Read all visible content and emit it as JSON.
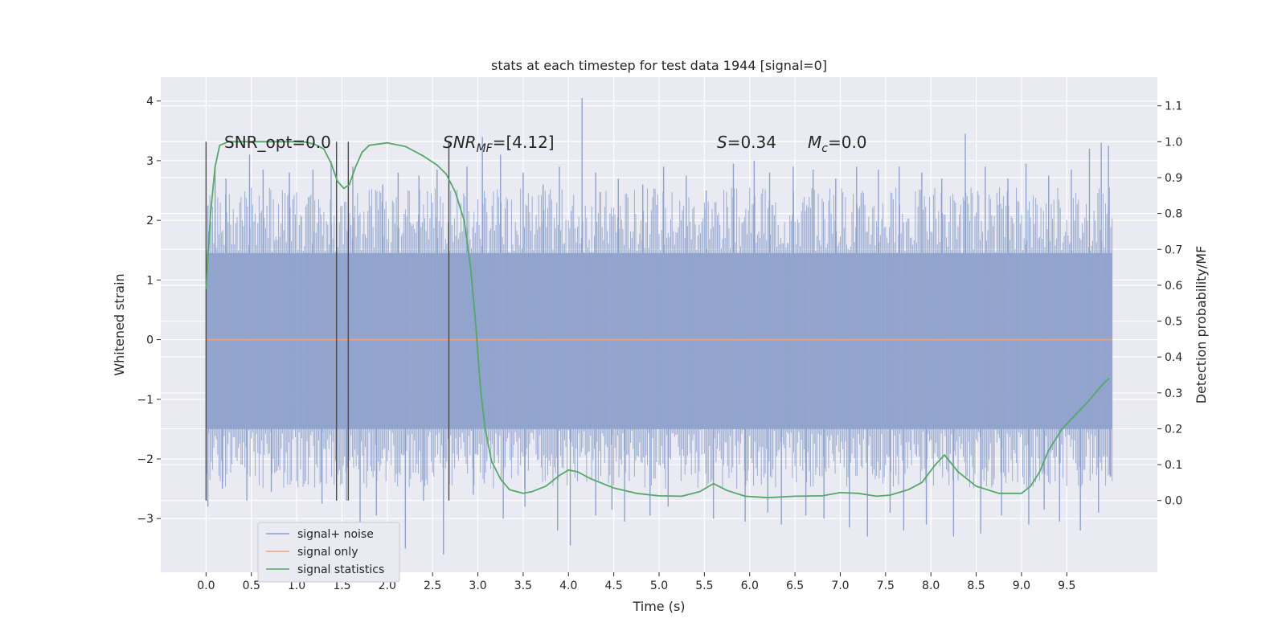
{
  "chart_data": {
    "type": "line",
    "title": "stats at each timestep for test data 1944 [signal=0]",
    "xlabel": "Time (s)",
    "ylabel": "Whitened strain",
    "ylabel_right": "Detection probability/MF",
    "xlim": [
      -0.5,
      10.5
    ],
    "ylim": [
      -3.9,
      4.4
    ],
    "ylim_right": [
      -0.2,
      1.18
    ],
    "x_ticks": [
      "0.0",
      "0.5",
      "1.0",
      "1.5",
      "2.0",
      "2.5",
      "3.0",
      "3.5",
      "4.0",
      "4.5",
      "5.0",
      "5.5",
      "6.0",
      "6.5",
      "7.0",
      "7.5",
      "8.0",
      "8.5",
      "9.0",
      "9.5"
    ],
    "y_ticks": [
      "−3",
      "−2",
      "−1",
      "0",
      "1",
      "2",
      "3",
      "4"
    ],
    "y_right_ticks": [
      "0.0",
      "0.1",
      "0.2",
      "0.3",
      "0.4",
      "0.5",
      "0.6",
      "0.7",
      "0.8",
      "0.9",
      "1.0",
      "1.1"
    ],
    "annotations": {
      "snr_opt": "SNR_opt=0.0",
      "snr_mf_main": "SNR",
      "snr_mf_sub": "MF",
      "snr_mf_value": "=[4.12]",
      "s_var": "S",
      "s_value": "=0.34",
      "mc_var": "M",
      "mc_sub": "c",
      "mc_value": "=0.0"
    },
    "vertical_markers": [
      0.0,
      1.44,
      1.57,
      2.68
    ],
    "legend": {
      "placement": "lower-left",
      "entries": [
        {
          "label": "signal+ noise",
          "color": "#8ea2cc"
        },
        {
          "label": "signal only",
          "color": "#e5a58a"
        },
        {
          "label": "signal statistics",
          "color": "#55a868"
        }
      ]
    },
    "series": [
      {
        "name": "signal+ noise",
        "axis": "left",
        "style": "noise-band",
        "x_range": [
          0.0,
          10.0
        ],
        "envelope": [
          1.45,
          -1.5
        ],
        "spikes_up": [
          [
            0.02,
            2.25
          ],
          [
            0.1,
            2.9
          ],
          [
            0.22,
            2.7
          ],
          [
            0.48,
            3.1
          ],
          [
            0.63,
            2.85
          ],
          [
            0.92,
            2.8
          ],
          [
            1.18,
            2.85
          ],
          [
            1.38,
            3.0
          ],
          [
            1.62,
            2.9
          ],
          [
            1.95,
            2.6
          ],
          [
            2.12,
            2.8
          ],
          [
            2.35,
            2.75
          ],
          [
            2.55,
            2.85
          ],
          [
            2.88,
            2.9
          ],
          [
            3.05,
            3.4
          ],
          [
            3.25,
            3.1
          ],
          [
            3.5,
            2.8
          ],
          [
            3.72,
            2.6
          ],
          [
            3.9,
            2.9
          ],
          [
            4.15,
            4.05
          ],
          [
            4.3,
            2.8
          ],
          [
            4.55,
            2.7
          ],
          [
            4.82,
            2.6
          ],
          [
            5.05,
            2.9
          ],
          [
            5.3,
            2.75
          ],
          [
            5.52,
            2.5
          ],
          [
            5.82,
            2.95
          ],
          [
            6.05,
            3.0
          ],
          [
            6.22,
            2.8
          ],
          [
            6.48,
            2.9
          ],
          [
            6.7,
            2.85
          ],
          [
            6.95,
            2.7
          ],
          [
            7.18,
            2.9
          ],
          [
            7.42,
            2.85
          ],
          [
            7.65,
            2.9
          ],
          [
            7.9,
            2.8
          ],
          [
            8.12,
            2.7
          ],
          [
            8.38,
            3.45
          ],
          [
            8.6,
            2.9
          ],
          [
            8.85,
            2.7
          ],
          [
            9.05,
            2.95
          ],
          [
            9.3,
            2.75
          ],
          [
            9.55,
            2.85
          ],
          [
            9.75,
            3.2
          ],
          [
            9.88,
            3.3
          ],
          [
            9.96,
            3.25
          ]
        ],
        "spikes_down": [
          [
            0.02,
            -2.8
          ],
          [
            0.18,
            -2.5
          ],
          [
            0.45,
            -2.7
          ],
          [
            0.72,
            -2.55
          ],
          [
            1.28,
            -2.75
          ],
          [
            1.55,
            -2.7
          ],
          [
            1.7,
            -3.1
          ],
          [
            1.88,
            -2.95
          ],
          [
            2.2,
            -3.5
          ],
          [
            2.4,
            -2.7
          ],
          [
            2.62,
            -3.6
          ],
          [
            2.95,
            -2.6
          ],
          [
            3.28,
            -3.0
          ],
          [
            3.52,
            -2.8
          ],
          [
            3.88,
            -3.2
          ],
          [
            4.02,
            -3.45
          ],
          [
            4.3,
            -2.95
          ],
          [
            4.48,
            -2.85
          ],
          [
            4.62,
            -3.05
          ],
          [
            4.9,
            -2.95
          ],
          [
            5.1,
            -2.8
          ],
          [
            5.6,
            -3.0
          ],
          [
            5.95,
            -3.05
          ],
          [
            6.2,
            -2.9
          ],
          [
            6.35,
            -3.1
          ],
          [
            6.62,
            -2.95
          ],
          [
            6.82,
            -3.0
          ],
          [
            7.1,
            -3.15
          ],
          [
            7.3,
            -3.3
          ],
          [
            7.55,
            -2.9
          ],
          [
            7.7,
            -3.2
          ],
          [
            7.95,
            -3.1
          ],
          [
            8.25,
            -3.3
          ],
          [
            8.55,
            -3.25
          ],
          [
            8.78,
            -2.95
          ],
          [
            9.08,
            -3.1
          ],
          [
            9.25,
            -2.85
          ],
          [
            9.42,
            -3.05
          ],
          [
            9.65,
            -3.2
          ],
          [
            9.85,
            -2.9
          ],
          [
            9.98,
            -2.3
          ]
        ]
      },
      {
        "name": "signal only",
        "axis": "left",
        "x": [
          0.0,
          10.0
        ],
        "y": [
          0.0,
          0.0
        ]
      },
      {
        "name": "signal statistics",
        "axis": "right",
        "x": [
          0.0,
          0.05,
          0.1,
          0.15,
          0.25,
          0.5,
          0.8,
          1.0,
          1.1,
          1.2,
          1.3,
          1.38,
          1.45,
          1.52,
          1.58,
          1.65,
          1.72,
          1.8,
          2.0,
          2.2,
          2.4,
          2.55,
          2.65,
          2.75,
          2.85,
          2.92,
          2.98,
          3.03,
          3.08,
          3.15,
          3.25,
          3.35,
          3.5,
          3.6,
          3.75,
          3.9,
          4.0,
          4.1,
          4.25,
          4.5,
          4.75,
          5.0,
          5.25,
          5.45,
          5.6,
          5.75,
          5.95,
          6.2,
          6.5,
          6.8,
          7.0,
          7.2,
          7.4,
          7.55,
          7.75,
          7.9,
          8.05,
          8.15,
          8.3,
          8.5,
          8.75,
          9.0,
          9.1,
          9.2,
          9.3,
          9.45,
          9.6,
          9.75,
          9.85,
          9.92,
          9.97
        ],
        "y": [
          0.59,
          0.8,
          0.93,
          0.99,
          1.0,
          1.0,
          1.0,
          1.0,
          0.999,
          0.993,
          0.98,
          0.94,
          0.89,
          0.87,
          0.88,
          0.93,
          0.97,
          0.99,
          0.997,
          0.987,
          0.96,
          0.935,
          0.91,
          0.86,
          0.78,
          0.65,
          0.48,
          0.31,
          0.2,
          0.11,
          0.06,
          0.03,
          0.02,
          0.025,
          0.04,
          0.07,
          0.085,
          0.08,
          0.06,
          0.035,
          0.02,
          0.013,
          0.012,
          0.025,
          0.047,
          0.028,
          0.012,
          0.008,
          0.012,
          0.013,
          0.022,
          0.02,
          0.012,
          0.015,
          0.03,
          0.05,
          0.1,
          0.127,
          0.08,
          0.04,
          0.02,
          0.02,
          0.04,
          0.08,
          0.14,
          0.2,
          0.24,
          0.28,
          0.31,
          0.33,
          0.34
        ]
      }
    ]
  }
}
